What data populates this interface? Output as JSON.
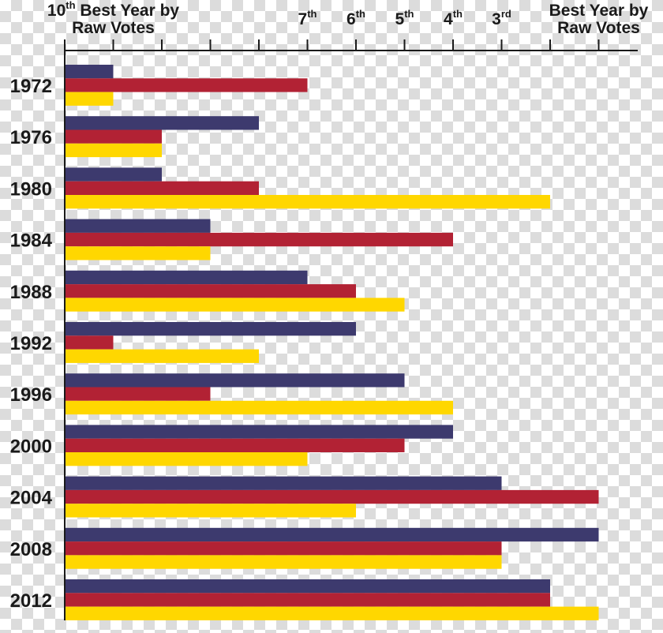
{
  "chart_data": {
    "type": "bar",
    "orientation": "horizontal",
    "title": "",
    "xlabel": "",
    "ylabel": "",
    "xlim": [
      0,
      11
    ],
    "x_ticks": [
      {
        "value": 1,
        "main": "10",
        "sup": "th",
        "line1": "Best Year by",
        "line2": "Raw Votes"
      },
      {
        "value": 5,
        "main": "7",
        "sup": "th"
      },
      {
        "value": 6,
        "main": "6",
        "sup": "th"
      },
      {
        "value": 7,
        "main": "5",
        "sup": "th"
      },
      {
        "value": 8,
        "main": "4",
        "sup": "th"
      },
      {
        "value": 9,
        "main": "3",
        "sup": "rd"
      },
      {
        "value": 11,
        "main": "Best Year by",
        "line2": "Raw Votes"
      }
    ],
    "categories": [
      "1972",
      "1976",
      "1980",
      "1984",
      "1988",
      "1992",
      "1996",
      "2000",
      "2004",
      "2008",
      "2012"
    ],
    "series": [
      {
        "color": "#3d3a6e",
        "values": [
          1,
          4,
          2,
          3,
          5,
          6,
          7,
          8,
          9,
          11,
          10
        ]
      },
      {
        "color": "#b22234",
        "values": [
          5,
          2,
          4,
          8,
          6,
          1,
          3,
          7,
          11,
          9,
          10
        ]
      },
      {
        "color": "#ffd700",
        "values": [
          1,
          2,
          10,
          3,
          7,
          4,
          8,
          5,
          6,
          9,
          11
        ]
      }
    ],
    "grid": false,
    "legend": "none"
  }
}
